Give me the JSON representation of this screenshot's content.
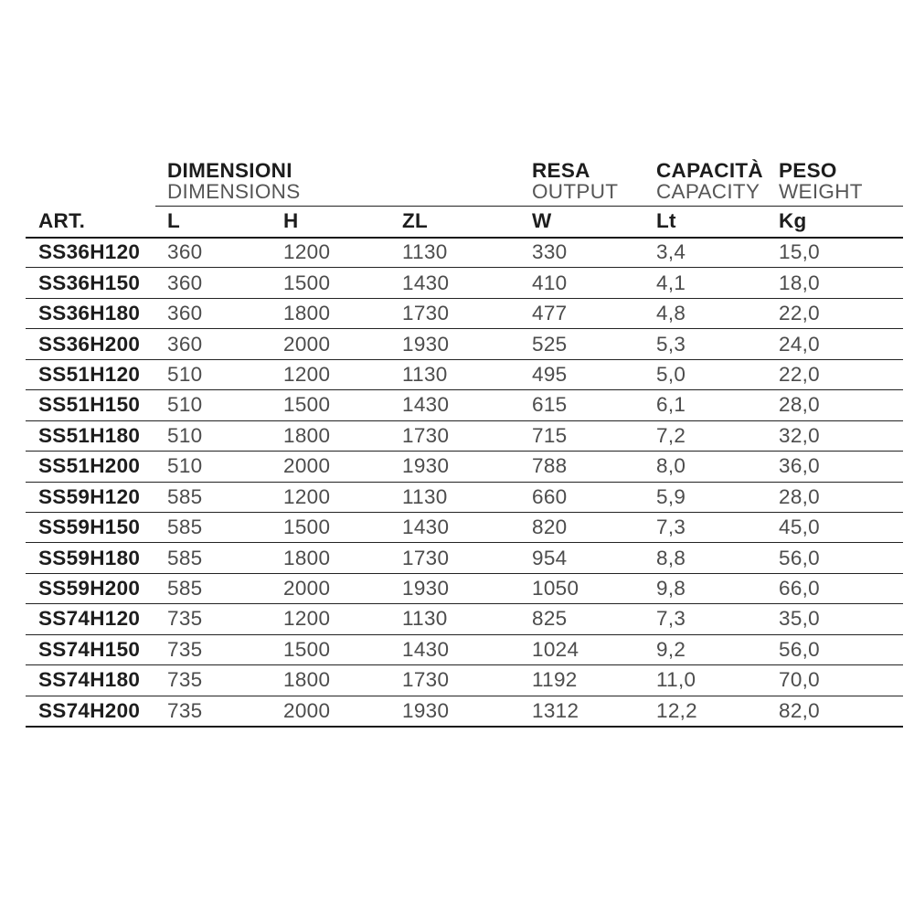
{
  "colors": {
    "background": "#ffffff",
    "text_dark": "#1d1d1d",
    "text_light": "#4c4c4c",
    "rule_line": "#232323"
  },
  "table": {
    "header_groups": [
      {
        "it": "DIMENSIONI",
        "en": "DIMENSIONS"
      },
      {
        "it": "RESA",
        "en": "OUTPUT"
      },
      {
        "it": "CAPACITÀ",
        "en": "CAPACITY"
      },
      {
        "it": "PESO",
        "en": "WEIGHT"
      }
    ],
    "columns": [
      "ART.",
      "L",
      "H",
      "ZL",
      "W",
      "Lt",
      "Kg"
    ],
    "column_keys": [
      "art",
      "l",
      "h",
      "zl",
      "w",
      "lt",
      "kg"
    ],
    "rows": [
      [
        "SS36H120",
        "360",
        "1200",
        "1130",
        "330",
        "3,4",
        "15,0"
      ],
      [
        "SS36H150",
        "360",
        "1500",
        "1430",
        "410",
        "4,1",
        "18,0"
      ],
      [
        "SS36H180",
        "360",
        "1800",
        "1730",
        "477",
        "4,8",
        "22,0"
      ],
      [
        "SS36H200",
        "360",
        "2000",
        "1930",
        "525",
        "5,3",
        "24,0"
      ],
      [
        "SS51H120",
        "510",
        "1200",
        "1130",
        "495",
        "5,0",
        "22,0"
      ],
      [
        "SS51H150",
        "510",
        "1500",
        "1430",
        "615",
        "6,1",
        "28,0"
      ],
      [
        "SS51H180",
        "510",
        "1800",
        "1730",
        "715",
        "7,2",
        "32,0"
      ],
      [
        "SS51H200",
        "510",
        "2000",
        "1930",
        "788",
        "8,0",
        "36,0"
      ],
      [
        "SS59H120",
        "585",
        "1200",
        "1130",
        "660",
        "5,9",
        "28,0"
      ],
      [
        "SS59H150",
        "585",
        "1500",
        "1430",
        "820",
        "7,3",
        "45,0"
      ],
      [
        "SS59H180",
        "585",
        "1800",
        "1730",
        "954",
        "8,8",
        "56,0"
      ],
      [
        "SS59H200",
        "585",
        "2000",
        "1930",
        "1050",
        "9,8",
        "66,0"
      ],
      [
        "SS74H120",
        "735",
        "1200",
        "1130",
        "825",
        "7,3",
        "35,0"
      ],
      [
        "SS74H150",
        "735",
        "1500",
        "1430",
        "1024",
        "9,2",
        "56,0"
      ],
      [
        "SS74H180",
        "735",
        "1800",
        "1730",
        "1192",
        "11,0",
        "70,0"
      ],
      [
        "SS74H200",
        "735",
        "2000",
        "1930",
        "1312",
        "12,2",
        "82,0"
      ]
    ]
  }
}
